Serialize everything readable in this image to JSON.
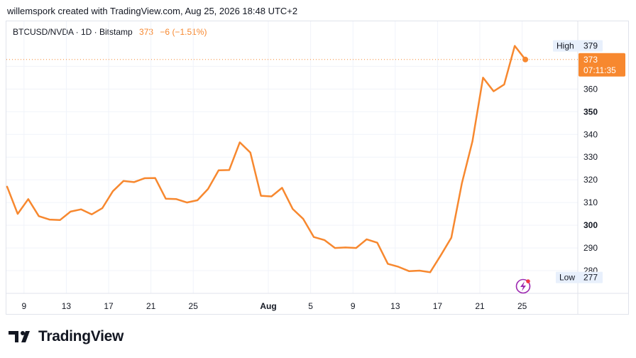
{
  "header": {
    "created_by": "willemspork created with TradingView.com, Aug 25, 2026 18:48 UTC+2"
  },
  "legend": {
    "symbol": "BTCUSD/NVDA · 1D · Bitstamp",
    "last": "373",
    "change": "−6 (−1.51%)"
  },
  "footer": {
    "brand": "TradingView"
  },
  "colors": {
    "line": "#f7882f",
    "grid": "#f0f3fa",
    "axis_text": "#131722"
  },
  "chart_data": {
    "type": "line",
    "x_labels": [
      "9",
      "13",
      "17",
      "21",
      "25",
      "Aug",
      "5",
      "9",
      "13",
      "17",
      "21",
      "25"
    ],
    "y_ticks": [
      "280",
      "290",
      "300",
      "310",
      "320",
      "330",
      "340",
      "350",
      "360",
      "370"
    ],
    "y_range": [
      270,
      382
    ],
    "series": [
      {
        "values": [
          317,
          305,
          311.5,
          304,
          302.5,
          302.3,
          306,
          307,
          304.8,
          307.5,
          315,
          319.5,
          319,
          320.7,
          320.8,
          311.7,
          311.5,
          310,
          311,
          316,
          324.2,
          324.3,
          336.5,
          332,
          313,
          312.7,
          316.5,
          307.2,
          302.8,
          294.8,
          293.5,
          290,
          290.2,
          290,
          293.8,
          292.3,
          283,
          281.7,
          279.8,
          280,
          279.3,
          286.7,
          294.5,
          318.5,
          337,
          365,
          359,
          362,
          379,
          373
        ]
      }
    ],
    "high": {
      "label": "High",
      "value": "379"
    },
    "low": {
      "label": "Low",
      "value": "277"
    },
    "last_price": {
      "value": "373",
      "countdown": "07:11:35"
    },
    "grid": true
  }
}
